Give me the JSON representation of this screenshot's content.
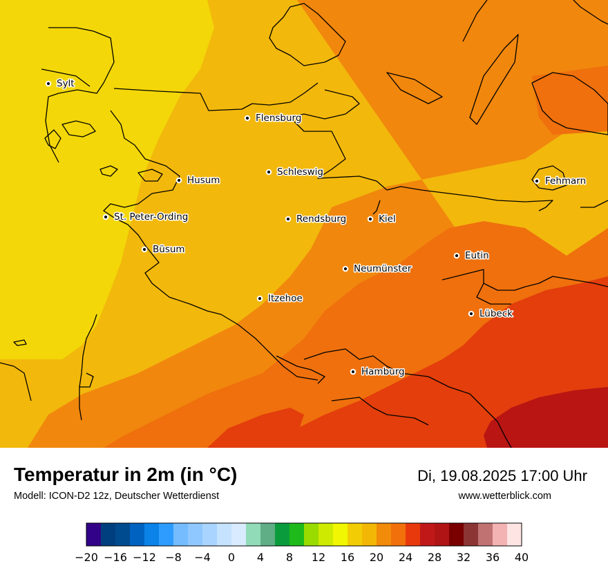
{
  "map": {
    "cities": [
      {
        "name": "Sylt"
      },
      {
        "name": "Flensburg"
      },
      {
        "name": "Schleswig"
      },
      {
        "name": "Husum"
      },
      {
        "name": "Fehmarn"
      },
      {
        "name": "St. Peter-Ording"
      },
      {
        "name": "Rendsburg"
      },
      {
        "name": "Kiel"
      },
      {
        "name": "Büsum"
      },
      {
        "name": "Eutin"
      },
      {
        "name": "Neumünster"
      },
      {
        "name": "Itzehoe"
      },
      {
        "name": "Lübeck"
      },
      {
        "name": "Hamburg"
      }
    ]
  },
  "footer": {
    "title": "Temperatur in 2m (in °C)",
    "subtitle": "Modell: ICON-D2 12z, Deutscher Wetterdienst",
    "datetime": "Di, 19.08.2025 17:00 Uhr",
    "website": "www.wetterblick.com"
  },
  "legend": {
    "unit": "°C",
    "min": -20,
    "max": 40,
    "tick_labels": [
      "−20",
      "−16",
      "−12",
      "−8",
      "−4",
      "0",
      "4",
      "8",
      "12",
      "16",
      "20",
      "24",
      "28",
      "32",
      "36",
      "40"
    ],
    "colors": [
      "#320387",
      "#003f7f",
      "#004a8f",
      "#0062c0",
      "#0a82e8",
      "#2e9cff",
      "#75bcff",
      "#8fc8ff",
      "#a9d4ff",
      "#c5e2ff",
      "#d8ebff",
      "#92dbb8",
      "#5fae86",
      "#0a9c3c",
      "#1eba1b",
      "#9adb00",
      "#cdea00",
      "#f1f702",
      "#f2cd05",
      "#f2b705",
      "#f28a0a",
      "#f1700c",
      "#e8390d",
      "#c01818",
      "#b01414",
      "#7a0000",
      "#8b3535",
      "#c07272",
      "#f3b3b3",
      "#ffe4e4"
    ]
  },
  "bands": {
    "band_16_18": "#f3d708",
    "band_18_20": "#f2b80c",
    "band_20_22": "#f1870d",
    "band_22_24": "#ef700d",
    "band_24_26": "#e33e0c",
    "band_26_28": "#b81513"
  }
}
